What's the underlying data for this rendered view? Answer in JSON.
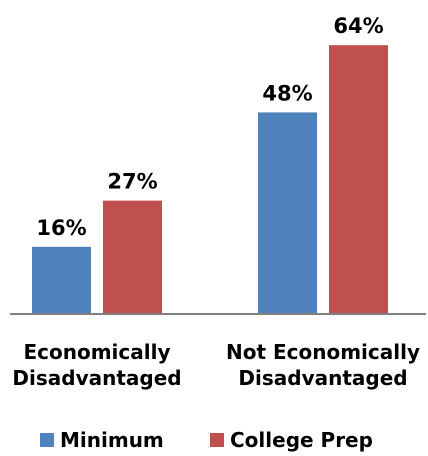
{
  "chart_data": {
    "type": "bar",
    "categories": [
      [
        "Economically",
        "Disadvantaged"
      ],
      [
        "Not Economically",
        "Disadvantaged"
      ]
    ],
    "series": [
      {
        "name": "Minimum",
        "values": [
          16,
          48
        ],
        "color": "#4f81bd"
      },
      {
        "name": "College Prep",
        "values": [
          27,
          64
        ],
        "color": "#c0504d"
      }
    ],
    "value_suffix": "%",
    "ylim": [
      0,
      70
    ],
    "grid": false,
    "legend": "bottom"
  }
}
